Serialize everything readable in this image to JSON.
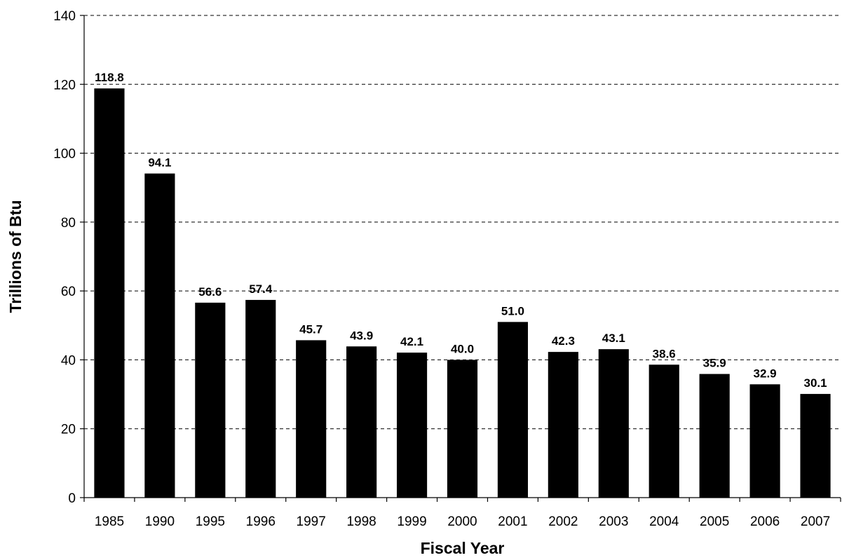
{
  "chart_data": {
    "type": "bar",
    "title": "",
    "xlabel": "Fiscal Year",
    "ylabel": "Trillions of Btu",
    "categories": [
      "1985",
      "1990",
      "1995",
      "1996",
      "1997",
      "1998",
      "1999",
      "2000",
      "2001",
      "2002",
      "2003",
      "2004",
      "2005",
      "2006",
      "2007"
    ],
    "values": [
      118.8,
      94.1,
      56.6,
      57.4,
      45.7,
      43.9,
      42.1,
      40.0,
      51.0,
      42.3,
      43.1,
      38.6,
      35.9,
      32.9,
      30.1
    ],
    "data_labels": [
      "118.8",
      "94.1",
      "56.6",
      "57.4",
      "45.7",
      "43.9",
      "42.1",
      "40.0",
      "51.0",
      "42.3",
      "43.1",
      "38.6",
      "35.9",
      "32.9",
      "30.1"
    ],
    "ylim": [
      0,
      140
    ],
    "yticks": [
      "0",
      "20",
      "40",
      "60",
      "80",
      "100",
      "120",
      "140"
    ],
    "grid": true,
    "legend": "none",
    "bar_color": "#000000"
  }
}
